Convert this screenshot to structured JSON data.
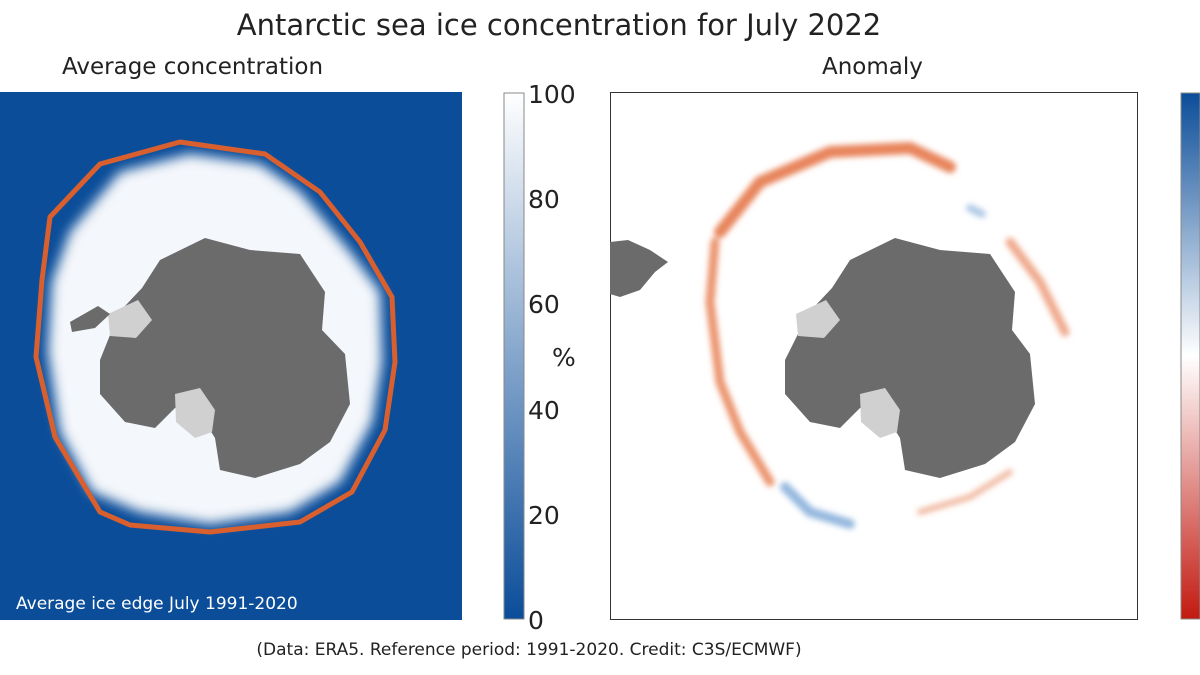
{
  "figure": {
    "title": "Antarctic sea ice concentration for July 2022",
    "credit": "(Data: ERA5.  Reference period: 1991-2020.  Credit: C3S/ECMWF)"
  },
  "left_panel": {
    "title": "Average concentration",
    "edge_label": "Average ice edge July 1991-2020",
    "colors": {
      "ocean": "#0b4d99",
      "ice": "#f4f7fb",
      "land": "#6b6b6b",
      "ice_shelf": "#d0d0d0",
      "ice_edge": "#d9602e"
    }
  },
  "right_panel": {
    "title": "Anomaly",
    "colors": {
      "background": "#ffffff",
      "negative": "#e4703f",
      "positive": "#7aa6d6",
      "land": "#6b6b6b",
      "ice_shelf": "#d0d0d0"
    }
  },
  "colorbar_concentration": {
    "unit": "%",
    "ticks": [
      "100",
      "80",
      "60",
      "40",
      "20",
      "0"
    ],
    "range": [
      0,
      100
    ],
    "colors": {
      "low": "#0b4d99",
      "high": "#ffffff"
    }
  },
  "colorbar_anomaly": {
    "colors": {
      "top": "#0b4d99",
      "middle": "#ffffff",
      "bottom": "#c21a10"
    }
  }
}
